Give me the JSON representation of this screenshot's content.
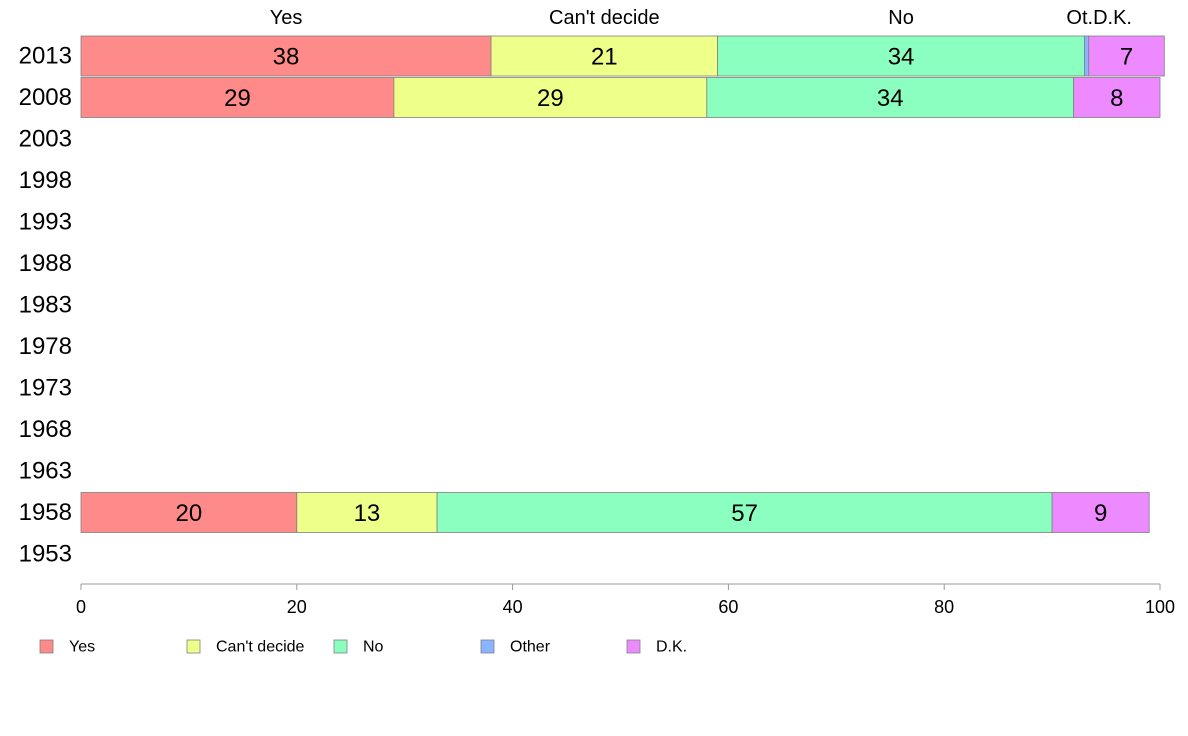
{
  "chart_data": {
    "type": "bar",
    "orientation": "horizontal",
    "stacked": true,
    "categories": [
      "2013",
      "2008",
      "2003",
      "1998",
      "1993",
      "1988",
      "1983",
      "1978",
      "1973",
      "1968",
      "1963",
      "1958",
      "1953"
    ],
    "series": [
      {
        "name": "Yes",
        "color": "#ff8a8a",
        "values": [
          38,
          29,
          null,
          null,
          null,
          null,
          null,
          null,
          null,
          null,
          null,
          20,
          null
        ],
        "shown_labels": [
          "38",
          "29",
          "",
          "",
          "",
          "",
          "",
          "",
          "",
          "",
          "",
          "20",
          ""
        ]
      },
      {
        "name": "Can't decide",
        "color": "#eeff8a",
        "values": [
          21,
          29,
          null,
          null,
          null,
          null,
          null,
          null,
          null,
          null,
          null,
          13,
          null
        ],
        "shown_labels": [
          "21",
          "29",
          "",
          "",
          "",
          "",
          "",
          "",
          "",
          "",
          "",
          "13",
          ""
        ]
      },
      {
        "name": "No",
        "color": "#8affbf",
        "values": [
          34,
          34,
          null,
          null,
          null,
          null,
          null,
          null,
          null,
          null,
          null,
          57,
          null
        ],
        "shown_labels": [
          "34",
          "34",
          "",
          "",
          "",
          "",
          "",
          "",
          "",
          "",
          "",
          "57",
          ""
        ]
      },
      {
        "name": "Other",
        "color": "#8ab4ff",
        "values": [
          0.4,
          0,
          null,
          null,
          null,
          null,
          null,
          null,
          null,
          null,
          null,
          0,
          null
        ],
        "shown_labels": [
          "",
          "",
          "",
          "",
          "",
          "",
          "",
          "",
          "",
          "",
          "",
          "",
          ""
        ]
      },
      {
        "name": "D.K.",
        "color": "#ee8aff",
        "values": [
          7,
          8,
          null,
          null,
          null,
          null,
          null,
          null,
          null,
          null,
          null,
          9,
          null
        ],
        "shown_labels": [
          "7",
          "8",
          "",
          "",
          "",
          "",
          "",
          "",
          "",
          "",
          "",
          "9",
          ""
        ]
      }
    ],
    "top_labels": [
      {
        "text": "Yes",
        "series": "Yes"
      },
      {
        "text": "Can't decide",
        "series": "Can't decide"
      },
      {
        "text": "No",
        "series": "No"
      },
      {
        "text": "Ot.",
        "series": "Other"
      },
      {
        "text": "D.K.",
        "series": "D.K."
      }
    ],
    "xlim": [
      0,
      100
    ],
    "xticks": [
      "0",
      "20",
      "40",
      "60",
      "80",
      "100"
    ],
    "title": "",
    "xlabel": "",
    "ylabel": "",
    "legend_position": "bottom-left",
    "grid": false,
    "axis_color": "#999999",
    "bar_border_color": "#808080"
  }
}
